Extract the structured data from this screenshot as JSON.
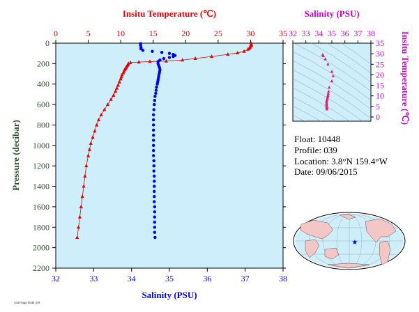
{
  "float_info": {
    "float": "Float:  10448",
    "profile": "Profile:  039",
    "location": "Location:  3.8°N  159.4°W",
    "date": "Date:  09/06/2015"
  },
  "footer_code": "A441/Argo/10448_039",
  "colors": {
    "temperature": "#e00000",
    "salinity": "#0000e0",
    "ts_axis": "#cc00cc",
    "ts_points": "#e0207a",
    "plot_bg": "#cdeefa",
    "axis_text": "#2f4f2f"
  },
  "map_marker_icon": "star-icon",
  "chart_data": [
    {
      "type": "scatter",
      "title_top": "Insitu Temperature (℃)",
      "xlabel_bottom": "Salinity (PSU)",
      "ylabel": "Pressure (decibar)",
      "temp_xlim": [
        0,
        35
      ],
      "temp_ticks": [
        "0",
        "5",
        "10",
        "15",
        "20",
        "25",
        "30",
        "35"
      ],
      "sal_xlim": [
        32,
        38
      ],
      "sal_ticks": [
        "32",
        "33",
        "34",
        "35",
        "36",
        "37",
        "38"
      ],
      "ylim": [
        0,
        2200
      ],
      "y_ticks": [
        "0",
        "200",
        "400",
        "600",
        "800",
        "1000",
        "1200",
        "1400",
        "1600",
        "1800",
        "2000",
        "2200"
      ],
      "grid": false,
      "series": [
        {
          "name": "Insitu Temperature",
          "points": [
            [
              30.1,
              5
            ],
            [
              30.1,
              10
            ],
            [
              30.1,
              15
            ],
            [
              30.1,
              20
            ],
            [
              30.0,
              25
            ],
            [
              30.0,
              30
            ],
            [
              29.9,
              40
            ],
            [
              29.8,
              50
            ],
            [
              29.6,
              60
            ],
            [
              29.0,
              80
            ],
            [
              28.0,
              95
            ],
            [
              26.5,
              110
            ],
            [
              24.0,
              130
            ],
            [
              21.5,
              150
            ],
            [
              19.5,
              165
            ],
            [
              17.0,
              175
            ],
            [
              14.5,
              180
            ],
            [
              12.8,
              185
            ],
            [
              11.5,
              190
            ],
            [
              11.2,
              200
            ],
            [
              11.1,
              210
            ],
            [
              11.0,
              220
            ],
            [
              10.9,
              230
            ],
            [
              10.8,
              240
            ],
            [
              10.7,
              250
            ],
            [
              10.6,
              260
            ],
            [
              10.5,
              275
            ],
            [
              10.4,
              290
            ],
            [
              10.2,
              310
            ],
            [
              10.1,
              330
            ],
            [
              10.0,
              350
            ],
            [
              9.8,
              380
            ],
            [
              9.6,
              410
            ],
            [
              9.4,
              440
            ],
            [
              9.2,
              470
            ],
            [
              8.9,
              510
            ],
            [
              8.5,
              550
            ],
            [
              8.0,
              600
            ],
            [
              7.5,
              650
            ],
            [
              7.0,
              700
            ],
            [
              6.6,
              750
            ],
            [
              6.3,
              800
            ],
            [
              6.0,
              860
            ],
            [
              5.7,
              920
            ],
            [
              5.4,
              980
            ],
            [
              5.2,
              1040
            ],
            [
              5.0,
              1100
            ],
            [
              4.7,
              1200
            ],
            [
              4.5,
              1300
            ],
            [
              4.3,
              1400
            ],
            [
              4.1,
              1500
            ],
            [
              3.9,
              1600
            ],
            [
              3.7,
              1700
            ],
            [
              3.5,
              1800
            ],
            [
              3.3,
              1900
            ]
          ]
        },
        {
          "name": "Salinity",
          "points": [
            [
              34.24,
              5
            ],
            [
              34.24,
              20
            ],
            [
              34.25,
              40
            ],
            [
              34.25,
              55
            ],
            [
              34.3,
              70
            ],
            [
              34.55,
              80
            ],
            [
              34.8,
              90
            ],
            [
              35.0,
              100
            ],
            [
              35.1,
              110
            ],
            [
              35.15,
              120
            ],
            [
              35.1,
              130
            ],
            [
              35.0,
              140
            ],
            [
              34.85,
              150
            ],
            [
              34.75,
              165
            ],
            [
              34.7,
              180
            ],
            [
              34.7,
              200
            ],
            [
              34.72,
              220
            ],
            [
              34.74,
              240
            ],
            [
              34.75,
              260
            ],
            [
              34.74,
              280
            ],
            [
              34.73,
              300
            ],
            [
              34.72,
              320
            ],
            [
              34.71,
              340
            ],
            [
              34.7,
              360
            ],
            [
              34.69,
              380
            ],
            [
              34.68,
              400
            ],
            [
              34.66,
              430
            ],
            [
              34.65,
              460
            ],
            [
              34.64,
              490
            ],
            [
              34.62,
              520
            ],
            [
              34.61,
              560
            ],
            [
              34.6,
              600
            ],
            [
              34.59,
              650
            ],
            [
              34.58,
              700
            ],
            [
              34.58,
              750
            ],
            [
              34.58,
              800
            ],
            [
              34.58,
              850
            ],
            [
              34.58,
              900
            ],
            [
              34.58,
              950
            ],
            [
              34.58,
              1000
            ],
            [
              34.58,
              1050
            ],
            [
              34.58,
              1100
            ],
            [
              34.59,
              1150
            ],
            [
              34.59,
              1200
            ],
            [
              34.59,
              1250
            ],
            [
              34.6,
              1300
            ],
            [
              34.6,
              1350
            ],
            [
              34.6,
              1400
            ],
            [
              34.6,
              1450
            ],
            [
              34.6,
              1500
            ],
            [
              34.6,
              1550
            ],
            [
              34.61,
              1600
            ],
            [
              34.61,
              1650
            ],
            [
              34.61,
              1700
            ],
            [
              34.61,
              1750
            ],
            [
              34.61,
              1800
            ],
            [
              34.61,
              1850
            ],
            [
              34.62,
              1900
            ]
          ]
        }
      ]
    },
    {
      "type": "scatter",
      "title_top": "Salinity (PSU)",
      "ylabel": "Insitu Temperature (℃)",
      "xlim": [
        32,
        38
      ],
      "x_ticks": [
        "32",
        "33",
        "34",
        "35",
        "36",
        "37",
        "38"
      ],
      "ylim": [
        -2,
        35
      ],
      "y_ticks": [
        "0",
        "5",
        "10",
        "15",
        "20",
        "25",
        "30",
        "35"
      ],
      "points": [
        [
          34.3,
          29.5
        ],
        [
          34.35,
          29.0
        ],
        [
          34.5,
          27.5
        ],
        [
          34.7,
          25.0
        ],
        [
          35.0,
          21.5
        ],
        [
          35.1,
          19.5
        ],
        [
          35.0,
          17.0
        ],
        [
          34.8,
          14.0
        ],
        [
          34.75,
          12.0
        ],
        [
          34.72,
          11.0
        ],
        [
          34.7,
          10.2
        ],
        [
          34.68,
          9.5
        ],
        [
          34.65,
          8.8
        ],
        [
          34.62,
          8.0
        ],
        [
          34.6,
          7.3
        ],
        [
          34.6,
          6.6
        ],
        [
          34.6,
          6.0
        ],
        [
          34.6,
          5.4
        ],
        [
          34.61,
          4.8
        ],
        [
          34.62,
          4.2
        ],
        [
          34.62,
          3.7
        ]
      ]
    }
  ]
}
